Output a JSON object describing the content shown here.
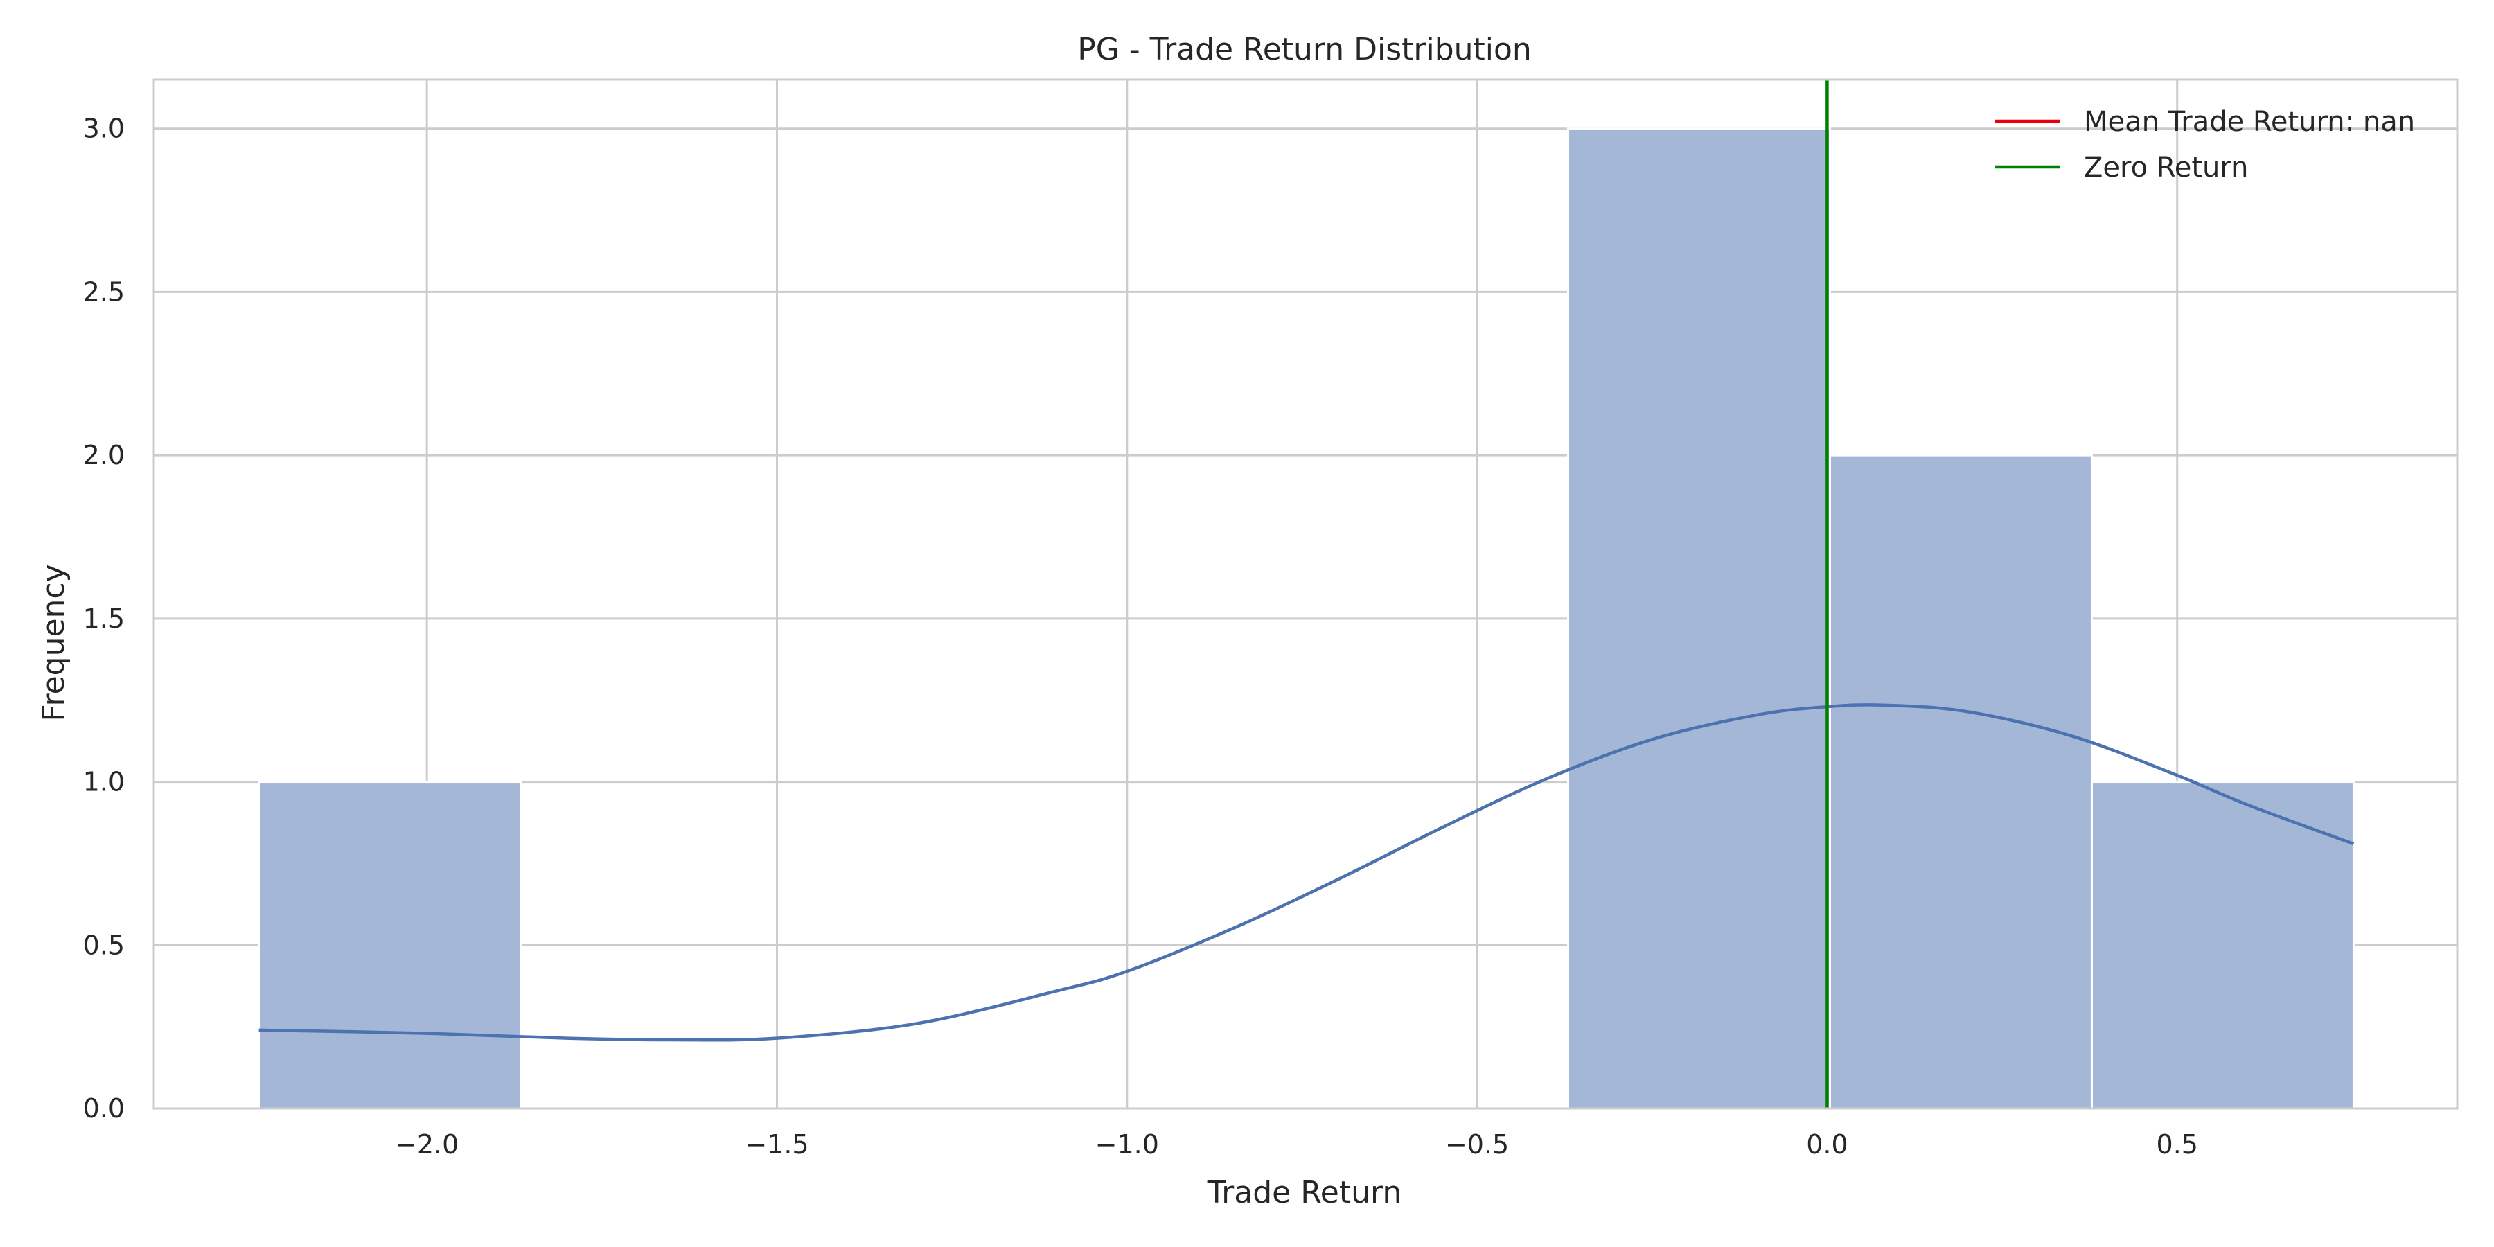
{
  "chart_data": {
    "type": "bar",
    "title": "PG - Trade Return Distribution",
    "xlabel": "Trade Return",
    "ylabel": "Frequency",
    "xlim": [
      -2.39,
      0.9
    ],
    "ylim": [
      0,
      3.15
    ],
    "grid": true,
    "bins": [
      {
        "x0": -2.24,
        "x1": -1.866,
        "count": 1
      },
      {
        "x0": -1.866,
        "x1": -1.492,
        "count": 0
      },
      {
        "x0": -1.492,
        "x1": -1.118,
        "count": 0
      },
      {
        "x0": -1.118,
        "x1": -0.744,
        "count": 0
      },
      {
        "x0": -0.744,
        "x1": -0.37,
        "count": 0
      },
      {
        "x0": -0.37,
        "x1": 0.004,
        "count": 3
      },
      {
        "x0": 0.004,
        "x1": 0.378,
        "count": 2
      },
      {
        "x0": 0.378,
        "x1": 0.752,
        "count": 1
      }
    ],
    "xticks": [
      -2.0,
      -1.5,
      -1.0,
      -0.5,
      0.0,
      0.5
    ],
    "xtick_labels": [
      "−2.0",
      "−1.5",
      "−1.0",
      "−0.5",
      "0.0",
      "0.5"
    ],
    "yticks": [
      0.0,
      0.5,
      1.0,
      1.5,
      2.0,
      2.5,
      3.0
    ],
    "ytick_labels": [
      "0.0",
      "0.5",
      "1.0",
      "1.5",
      "2.0",
      "2.5",
      "3.0"
    ],
    "kde": {
      "x": [
        -2.24,
        -2.0,
        -1.8,
        -1.65,
        -1.5,
        -1.3,
        -1.1,
        -1.0,
        -0.85,
        -0.7,
        -0.55,
        -0.4,
        -0.25,
        -0.1,
        0.0,
        0.08,
        0.2,
        0.35,
        0.5,
        0.6,
        0.752
      ],
      "y": [
        0.24,
        0.23,
        0.215,
        0.21,
        0.215,
        0.26,
        0.36,
        0.42,
        0.55,
        0.7,
        0.86,
        1.01,
        1.13,
        1.205,
        1.23,
        1.235,
        1.215,
        1.14,
        1.02,
        0.93,
        0.81
      ]
    },
    "vlines": [
      {
        "name": "Mean Trade Return: nan",
        "x": null,
        "color": "#e8000b"
      },
      {
        "name": "Zero Return",
        "x": 0.0,
        "color": "#008000"
      }
    ],
    "legend": {
      "placement": "top-right",
      "entries": [
        {
          "label": "Mean Trade Return: nan",
          "color": "#e8000b"
        },
        {
          "label": "Zero Return",
          "color": "#008000"
        }
      ]
    },
    "colors": {
      "bar": "#a5b7d7",
      "kde": "#4c72b0",
      "grid": "#cccccc",
      "spine": "#cccccc"
    }
  }
}
